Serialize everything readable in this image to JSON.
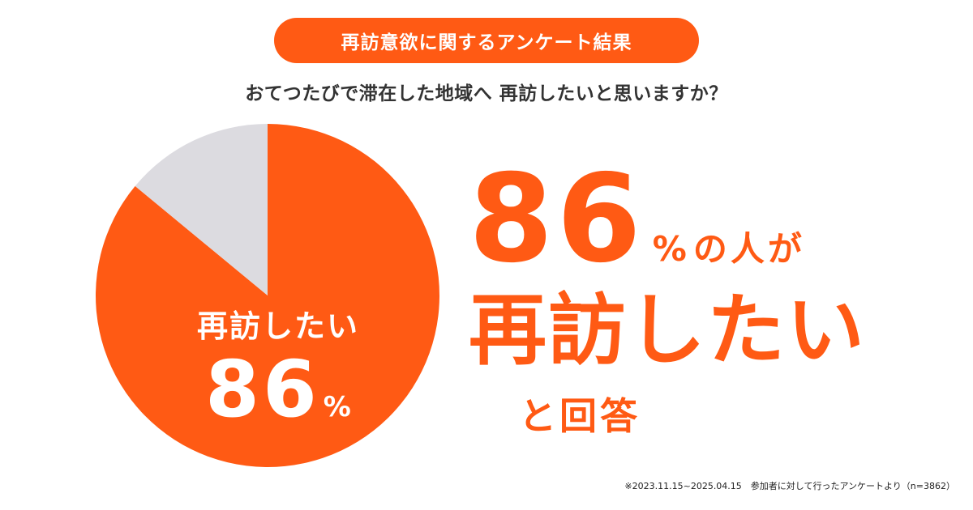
{
  "header": {
    "title": "再訪意欲に関するアンケート結果",
    "question": "おてつたびで滞在した地域へ 再訪したいと思いますか？"
  },
  "chart_data": {
    "type": "pie",
    "slices": [
      {
        "label": "再訪したい",
        "value": 86,
        "color": "#ff5a14"
      },
      {
        "label": "",
        "value": 14,
        "color": "#dcdbe0"
      }
    ],
    "data_label": {
      "text": "再訪したい",
      "value": "86",
      "unit": "%"
    }
  },
  "headline": {
    "number": "86",
    "unit": "%",
    "suffix": "の人が",
    "emphasis": "再訪したい",
    "closing": "と回答"
  },
  "footnote": "※2023.11.15~2025.04.15　参加者に対して行ったアンケートより（n=3862）",
  "colors": {
    "accent": "#ff5a14",
    "remainder": "#dcdbe0",
    "text": "#333333"
  }
}
